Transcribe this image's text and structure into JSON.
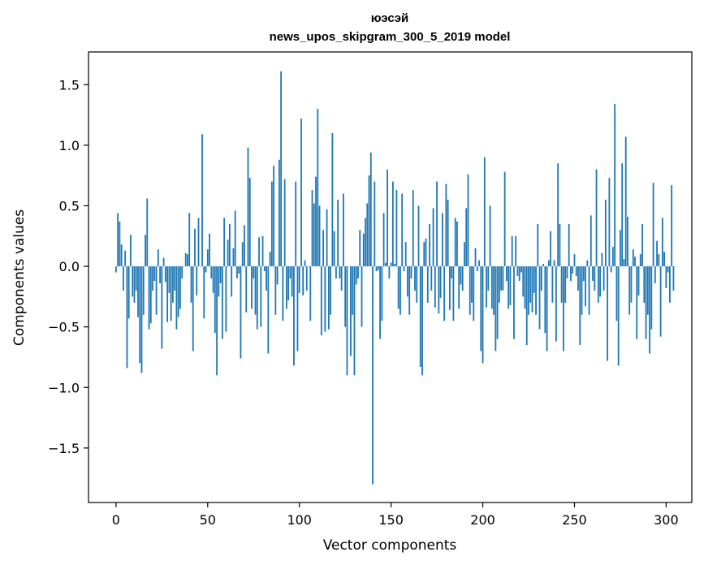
{
  "chart_data": {
    "type": "bar",
    "title_line1": "юэсэй",
    "title_line2": "news_upos_skipgram_300_5_2019 model",
    "xlabel": "Vector components",
    "ylabel": "Components values",
    "xlim": [
      -15,
      314
    ],
    "ylim": [
      -1.95,
      1.77
    ],
    "xticks": [
      0,
      50,
      100,
      150,
      200,
      250,
      300
    ],
    "yticks": [
      1.5,
      1.0,
      0.5,
      0.0,
      -0.5,
      -1.0,
      -1.5
    ],
    "xtick_labels": [
      "0",
      "50",
      "100",
      "150",
      "200",
      "250",
      "300"
    ],
    "ytick_labels": [
      "1.5",
      "1.0",
      "0.5",
      "0.0",
      "−0.5",
      "−1.0",
      "−1.5"
    ],
    "bar_color": "#1f77b4",
    "values": [
      -0.05,
      0.44,
      0.37,
      0.18,
      -0.2,
      0.13,
      -0.84,
      -0.43,
      0.26,
      -0.25,
      -0.3,
      -0.2,
      -0.42,
      -0.8,
      -0.88,
      -0.4,
      0.26,
      0.56,
      -0.52,
      -0.47,
      -0.2,
      -0.12,
      -0.4,
      0.14,
      -0.14,
      -0.68,
      0.07,
      -0.13,
      -0.46,
      -0.22,
      -0.45,
      -0.3,
      -0.2,
      -0.52,
      -0.42,
      -0.35,
      -0.1,
      0.0,
      0.11,
      0.1,
      0.44,
      -0.3,
      -0.7,
      0.31,
      -0.24,
      0.4,
      0.0,
      1.09,
      -0.43,
      -0.05,
      0.14,
      0.27,
      -0.1,
      -0.22,
      -0.55,
      -0.9,
      -0.25,
      -0.14,
      -0.6,
      0.4,
      -0.54,
      0.22,
      0.35,
      -0.25,
      0.15,
      0.46,
      -0.1,
      -0.06,
      -0.76,
      0.2,
      0.34,
      -0.38,
      0.98,
      0.73,
      -0.35,
      -0.1,
      -0.4,
      -0.52,
      0.24,
      -0.5,
      0.25,
      -0.04,
      -0.2,
      -0.72,
      0.12,
      0.7,
      0.83,
      -0.4,
      -0.15,
      0.88,
      1.61,
      -0.45,
      0.72,
      -0.35,
      -0.28,
      -0.1,
      -0.25,
      -0.82,
      0.7,
      -0.7,
      -0.22,
      1.22,
      -0.24,
      0.05,
      -0.2,
      0.0,
      -0.45,
      0.63,
      0.52,
      0.74,
      1.3,
      0.5,
      -0.57,
      0.3,
      -0.54,
      0.47,
      -0.52,
      -0.4,
      1.1,
      0.29,
      -0.1,
      0.55,
      -0.1,
      -0.2,
      0.6,
      -0.5,
      -0.9,
      0.0,
      -0.74,
      -0.4,
      -0.9,
      -0.15,
      -0.1,
      0.3,
      -0.5,
      0.27,
      0.4,
      0.52,
      0.75,
      0.94,
      -1.8,
      0.7,
      -0.04,
      -0.03,
      -0.6,
      -0.45,
      0.44,
      0.03,
      0.8,
      -0.1,
      0.03,
      0.7,
      0.02,
      0.63,
      -0.35,
      -0.4,
      0.6,
      -0.04,
      0.2,
      -0.25,
      -0.4,
      -0.1,
      0.63,
      -0.2,
      -0.3,
      0.5,
      -0.83,
      -0.9,
      0.2,
      0.23,
      -0.3,
      0.35,
      -0.2,
      0.48,
      -0.34,
      0.7,
      -0.39,
      -0.26,
      0.44,
      -0.45,
      0.68,
      0.55,
      -0.36,
      -0.1,
      -0.45,
      0.4,
      0.37,
      -0.35,
      -0.15,
      -0.2,
      0.2,
      0.48,
      0.76,
      -0.4,
      -0.3,
      -0.45,
      0.15,
      -0.04,
      0.05,
      -0.7,
      -0.8,
      0.9,
      -0.34,
      -0.2,
      0.5,
      -0.35,
      -0.4,
      -0.7,
      -0.6,
      -0.3,
      -0.2,
      -0.2,
      0.78,
      -0.12,
      -0.35,
      -0.32,
      0.25,
      -0.6,
      0.25,
      -0.08,
      -0.12,
      -0.05,
      -0.25,
      -0.35,
      -0.65,
      -0.4,
      -0.3,
      -0.38,
      -0.22,
      -0.4,
      0.35,
      -0.52,
      -0.2,
      0.02,
      -0.55,
      -0.7,
      0.05,
      0.29,
      -0.3,
      0.05,
      -0.62,
      0.85,
      0.35,
      -0.3,
      -0.7,
      -0.3,
      -0.1,
      0.35,
      -0.12,
      -0.06,
      0.1,
      -0.08,
      -0.2,
      -0.65,
      -0.4,
      -0.12,
      -0.33,
      0.05,
      -0.4,
      0.42,
      -0.12,
      -0.2,
      0.8,
      -0.3,
      -0.25,
      0.11,
      -0.2,
      0.55,
      -0.78,
      0.73,
      -0.05,
      0.16,
      1.34,
      -0.45,
      -0.82,
      0.3,
      0.85,
      0.06,
      1.07,
      0.41,
      -0.4,
      -0.3,
      0.14,
      0.08,
      -0.6,
      -0.24,
      0.1,
      0.35,
      -0.3,
      -0.6,
      -0.4,
      -0.72,
      -0.52,
      0.69,
      -0.14,
      0.21,
      0.1,
      -0.58,
      0.4,
      0.12,
      -0.18,
      -0.05,
      -0.3,
      0.67,
      -0.2,
      0.0
    ]
  }
}
